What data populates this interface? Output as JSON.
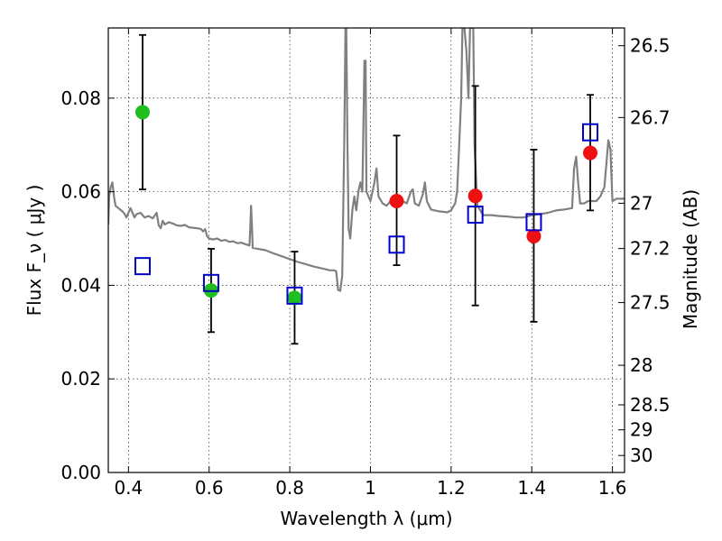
{
  "chart_data": {
    "type": "scatter",
    "xlabel": "Wavelength  λ (μm)",
    "ylabel": "Flux  F_ν  ( μJy )",
    "y2label": "Magnitude (AB)",
    "xlim": [
      0.35,
      1.63
    ],
    "ylim": [
      0.0,
      0.095
    ],
    "grid": true,
    "grid_style": "dotted",
    "x_ticks": [
      0.4,
      0.6,
      0.8,
      1.0,
      1.2,
      1.4,
      1.6
    ],
    "x_tick_labels": [
      "0.4",
      "0.6",
      "0.8",
      "1",
      "1.2",
      "1.4",
      "1.6"
    ],
    "y_ticks": [
      0.0,
      0.02,
      0.04,
      0.06,
      0.08
    ],
    "y_tick_labels": [
      "0.00",
      "0.02",
      "0.04",
      "0.06",
      "0.08"
    ],
    "y2_ticks": [
      {
        "label": "26.5",
        "mag": 26.5
      },
      {
        "label": "26.7",
        "mag": 26.7
      },
      {
        "label": "27",
        "mag": 27.0
      },
      {
        "label": "27.2",
        "mag": 27.2
      },
      {
        "label": "27.5",
        "mag": 27.5
      },
      {
        "label": "28",
        "mag": 28.0
      },
      {
        "label": "28.5",
        "mag": 28.5
      },
      {
        "label": "29",
        "mag": 29.0
      },
      {
        "label": "30",
        "mag": 30.0
      }
    ],
    "colors": {
      "green": "#1fbf1f",
      "red": "#ee1111",
      "model_box": "#0000cc",
      "sed_line": "#808080",
      "errorbar": "#000000"
    },
    "series": [
      {
        "marker": "circle",
        "color": "green",
        "points": [
          {
            "x": 0.435,
            "y": 0.077,
            "ylo": 0.0605,
            "yhi": 0.0935
          },
          {
            "x": 0.605,
            "y": 0.0389,
            "ylo": 0.03,
            "yhi": 0.0478
          },
          {
            "x": 0.812,
            "y": 0.0373,
            "ylo": 0.0275,
            "yhi": 0.0472
          }
        ]
      },
      {
        "marker": "circle",
        "color": "red",
        "points": [
          {
            "x": 1.065,
            "y": 0.058,
            "ylo": 0.0443,
            "yhi": 0.072
          },
          {
            "x": 1.26,
            "y": 0.0591,
            "ylo": 0.0357,
            "yhi": 0.0826
          },
          {
            "x": 1.405,
            "y": 0.0505,
            "ylo": 0.0322,
            "yhi": 0.069
          },
          {
            "x": 1.545,
            "y": 0.0683,
            "ylo": 0.056,
            "yhi": 0.0807
          }
        ]
      },
      {
        "marker": "open-square",
        "color": "model_box",
        "points": [
          {
            "x": 0.435,
            "y": 0.0441
          },
          {
            "x": 0.605,
            "y": 0.0405
          },
          {
            "x": 0.812,
            "y": 0.0378
          },
          {
            "x": 1.065,
            "y": 0.0487
          },
          {
            "x": 1.26,
            "y": 0.0551
          },
          {
            "x": 1.405,
            "y": 0.0535
          },
          {
            "x": 1.545,
            "y": 0.0727
          }
        ]
      }
    ],
    "sed_line": {
      "color": "sed_line",
      "points": [
        [
          0.35,
          0.053
        ],
        [
          0.352,
          0.059
        ],
        [
          0.356,
          0.061
        ],
        [
          0.36,
          0.062
        ],
        [
          0.364,
          0.059
        ],
        [
          0.368,
          0.057
        ],
        [
          0.375,
          0.0565
        ],
        [
          0.385,
          0.0558
        ],
        [
          0.39,
          0.0553
        ],
        [
          0.395,
          0.0545
        ],
        [
          0.4,
          0.0555
        ],
        [
          0.405,
          0.0565
        ],
        [
          0.41,
          0.0555
        ],
        [
          0.415,
          0.0545
        ],
        [
          0.42,
          0.0552
        ],
        [
          0.43,
          0.0555
        ],
        [
          0.44,
          0.0545
        ],
        [
          0.45,
          0.0548
        ],
        [
          0.46,
          0.0543
        ],
        [
          0.47,
          0.0555
        ],
        [
          0.475,
          0.0528
        ],
        [
          0.48,
          0.0522
        ],
        [
          0.485,
          0.0538
        ],
        [
          0.49,
          0.053
        ],
        [
          0.5,
          0.0535
        ],
        [
          0.51,
          0.0532
        ],
        [
          0.52,
          0.0528
        ],
        [
          0.53,
          0.0527
        ],
        [
          0.54,
          0.0529
        ],
        [
          0.55,
          0.0524
        ],
        [
          0.56,
          0.0523
        ],
        [
          0.57,
          0.0522
        ],
        [
          0.58,
          0.052
        ],
        [
          0.585,
          0.0515
        ],
        [
          0.59,
          0.052
        ],
        [
          0.595,
          0.0505
        ],
        [
          0.6,
          0.05
        ],
        [
          0.61,
          0.0498
        ],
        [
          0.62,
          0.05
        ],
        [
          0.63,
          0.0495
        ],
        [
          0.64,
          0.0497
        ],
        [
          0.65,
          0.0493
        ],
        [
          0.66,
          0.0494
        ],
        [
          0.67,
          0.049
        ],
        [
          0.68,
          0.0491
        ],
        [
          0.69,
          0.0488
        ],
        [
          0.7,
          0.0485
        ],
        [
          0.702,
          0.052
        ],
        [
          0.704,
          0.057
        ],
        [
          0.706,
          0.053
        ],
        [
          0.708,
          0.048
        ],
        [
          0.72,
          0.0478
        ],
        [
          0.74,
          0.0475
        ],
        [
          0.76,
          0.0468
        ],
        [
          0.78,
          0.0462
        ],
        [
          0.8,
          0.0456
        ],
        [
          0.82,
          0.045
        ],
        [
          0.84,
          0.0445
        ],
        [
          0.86,
          0.044
        ],
        [
          0.88,
          0.0436
        ],
        [
          0.9,
          0.0432
        ],
        [
          0.91,
          0.0432
        ],
        [
          0.915,
          0.043
        ],
        [
          0.92,
          0.039
        ],
        [
          0.925,
          0.0388
        ],
        [
          0.93,
          0.042
        ],
        [
          0.935,
          0.07
        ],
        [
          0.938,
          0.095
        ],
        [
          0.94,
          0.095
        ],
        [
          0.943,
          0.07
        ],
        [
          0.946,
          0.052
        ],
        [
          0.95,
          0.05
        ],
        [
          0.955,
          0.056
        ],
        [
          0.96,
          0.059
        ],
        [
          0.965,
          0.056
        ],
        [
          0.97,
          0.06
        ],
        [
          0.975,
          0.062
        ],
        [
          0.98,
          0.06
        ],
        [
          0.985,
          0.088
        ],
        [
          0.988,
          0.088
        ],
        [
          0.99,
          0.06
        ],
        [
          1.0,
          0.058
        ],
        [
          1.01,
          0.062
        ],
        [
          1.015,
          0.065
        ],
        [
          1.02,
          0.059
        ],
        [
          1.03,
          0.0575
        ],
        [
          1.04,
          0.057
        ],
        [
          1.05,
          0.058
        ],
        [
          1.06,
          0.058
        ],
        [
          1.07,
          0.0572
        ],
        [
          1.08,
          0.058
        ],
        [
          1.09,
          0.0575
        ],
        [
          1.1,
          0.06
        ],
        [
          1.105,
          0.0605
        ],
        [
          1.11,
          0.0575
        ],
        [
          1.12,
          0.057
        ],
        [
          1.13,
          0.0595
        ],
        [
          1.135,
          0.062
        ],
        [
          1.14,
          0.058
        ],
        [
          1.15,
          0.0562
        ],
        [
          1.16,
          0.056
        ],
        [
          1.17,
          0.0558
        ],
        [
          1.18,
          0.0557
        ],
        [
          1.19,
          0.0556
        ],
        [
          1.2,
          0.056
        ],
        [
          1.21,
          0.0575
        ],
        [
          1.215,
          0.06
        ],
        [
          1.22,
          0.07
        ],
        [
          1.225,
          0.08
        ],
        [
          1.228,
          0.095
        ],
        [
          1.233,
          0.095
        ],
        [
          1.238,
          0.09
        ],
        [
          1.243,
          0.08
        ],
        [
          1.247,
          0.095
        ],
        [
          1.255,
          0.095
        ],
        [
          1.258,
          0.07
        ],
        [
          1.265,
          0.057
        ],
        [
          1.28,
          0.055
        ],
        [
          1.3,
          0.055
        ],
        [
          1.32,
          0.0548
        ],
        [
          1.34,
          0.0547
        ],
        [
          1.36,
          0.0545
        ],
        [
          1.38,
          0.0545
        ],
        [
          1.4,
          0.055
        ],
        [
          1.42,
          0.0552
        ],
        [
          1.44,
          0.0555
        ],
        [
          1.46,
          0.056
        ],
        [
          1.48,
          0.0562
        ],
        [
          1.5,
          0.0565
        ],
        [
          1.505,
          0.065
        ],
        [
          1.51,
          0.0675
        ],
        [
          1.515,
          0.062
        ],
        [
          1.52,
          0.0575
        ],
        [
          1.53,
          0.0575
        ],
        [
          1.54,
          0.058
        ],
        [
          1.56,
          0.058
        ],
        [
          1.57,
          0.059
        ],
        [
          1.58,
          0.061
        ],
        [
          1.585,
          0.066
        ],
        [
          1.59,
          0.071
        ],
        [
          1.595,
          0.069
        ],
        [
          1.6,
          0.058
        ],
        [
          1.61,
          0.0585
        ],
        [
          1.63,
          0.0585
        ]
      ]
    }
  }
}
